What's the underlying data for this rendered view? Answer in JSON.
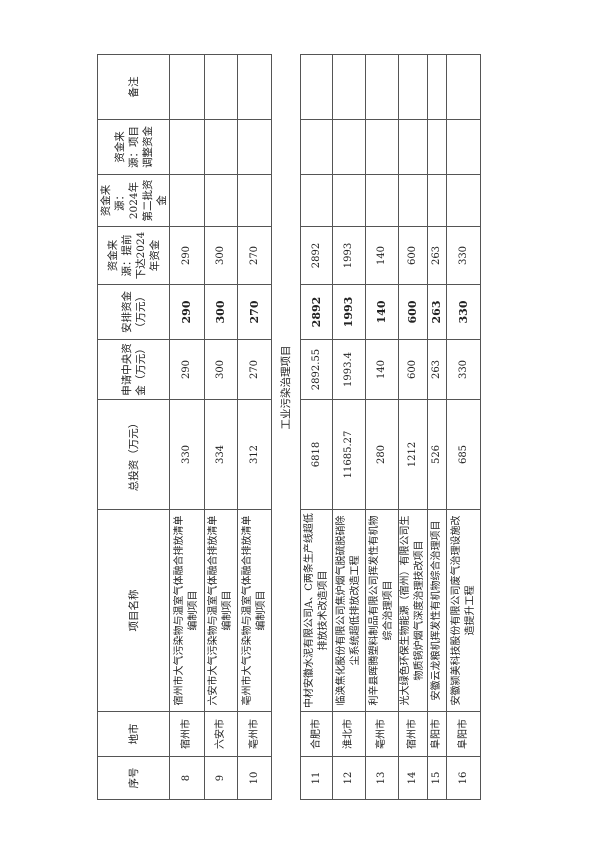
{
  "headers": {
    "seq": "序号",
    "city": "地市",
    "project": "项目名称",
    "total": "总投资（万元）",
    "requested": "申请中央资金（万元）",
    "arranged": "安排资金（万元）",
    "advance": "资金来源：提前下达2024年资金",
    "second": "资金来源：2024年第二批资金",
    "adjust": "资金来源：项目调整资金",
    "note": "备注"
  },
  "rows_top": [
    {
      "seq": "8",
      "city": "宿州市",
      "project": "宿州市大气污染物与温室气体融合排放清单编制项目",
      "total": "330",
      "requested": "290",
      "arranged": "290",
      "advance": "290",
      "second": "",
      "adjust": "",
      "note": ""
    },
    {
      "seq": "9",
      "city": "六安市",
      "project": "六安市大气污染物与温室气体融合排放清单编制项目",
      "total": "334",
      "requested": "300",
      "arranged": "300",
      "advance": "300",
      "second": "",
      "adjust": "",
      "note": ""
    },
    {
      "seq": "10",
      "city": "亳州市",
      "project": "亳州市大气污染物与温室气体融合排放清单编制项目",
      "total": "312",
      "requested": "270",
      "arranged": "270",
      "advance": "270",
      "second": "",
      "adjust": "",
      "note": ""
    }
  ],
  "section_title": "工业污染治理项目",
  "rows_bottom": [
    {
      "seq": "11",
      "city": "合肥市",
      "project": "中材安徽水泥有限公司A、C两条生产线超低排放技术改造项目",
      "total": "6818",
      "requested": "2892.55",
      "arranged": "2892",
      "advance": "2892",
      "second": "",
      "adjust": "",
      "note": ""
    },
    {
      "seq": "12",
      "city": "淮北市",
      "project": "临涣焦化股份有限公司焦炉烟气脱硫脱硝除尘系统超低排放改造工程",
      "total": "11685.27",
      "requested": "1993.4",
      "arranged": "1993",
      "advance": "1993",
      "second": "",
      "adjust": "",
      "note": ""
    },
    {
      "seq": "13",
      "city": "亳州市",
      "project": "利辛县晖腾塑料制品有限公司挥发性有机物综合治理项目",
      "total": "280",
      "requested": "140",
      "arranged": "140",
      "advance": "140",
      "second": "",
      "adjust": "",
      "note": ""
    },
    {
      "seq": "14",
      "city": "宿州市",
      "project": "光大绿色环保生物能源（宿州）有限公司生物质锅炉烟气深度治理技改项目",
      "total": "1212",
      "requested": "600",
      "arranged": "600",
      "advance": "600",
      "second": "",
      "adjust": "",
      "note": ""
    },
    {
      "seq": "15",
      "city": "阜阳市",
      "project": "安徽云龙粮机挥发性有机物综合治理项目",
      "total": "526",
      "requested": "263",
      "arranged": "263",
      "advance": "263",
      "second": "",
      "adjust": "",
      "note": ""
    },
    {
      "seq": "16",
      "city": "阜阳市",
      "project": "安徽颍美科技股份有限公司废气治理设施改造提升工程",
      "total": "685",
      "requested": "330",
      "arranged": "330",
      "advance": "330",
      "second": "",
      "adjust": "",
      "note": ""
    }
  ]
}
